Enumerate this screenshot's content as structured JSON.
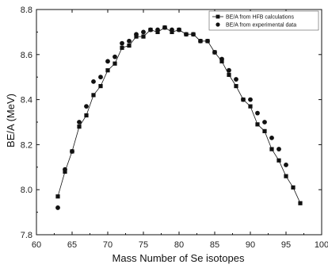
{
  "chart_data": {
    "type": "line",
    "title": "",
    "xlabel": "Mass Number of Se isotopes",
    "ylabel": "BE/A (MeV)",
    "xlim": [
      60,
      100
    ],
    "ylim": [
      7.8,
      8.8
    ],
    "xticks": [
      "60",
      "65",
      "70",
      "75",
      "80",
      "85",
      "90",
      "95",
      "100"
    ],
    "yticks": [
      "7.8",
      "8.0",
      "8.2",
      "8.4",
      "8.6",
      "8.8"
    ],
    "grid": false,
    "legend_position": "top-right",
    "series": [
      {
        "name": "BE/A from HFB calculations",
        "marker": "square",
        "line": true,
        "color": "#111111",
        "x": [
          63,
          64,
          65,
          66,
          67,
          68,
          69,
          70,
          71,
          72,
          73,
          74,
          75,
          76,
          77,
          78,
          79,
          80,
          81,
          82,
          83,
          84,
          85,
          86,
          87,
          88,
          89,
          90,
          91,
          92,
          93,
          94,
          95,
          96,
          97
        ],
        "y": [
          7.97,
          8.08,
          8.17,
          8.28,
          8.33,
          8.42,
          8.46,
          8.53,
          8.56,
          8.63,
          8.64,
          8.68,
          8.68,
          8.71,
          8.7,
          8.72,
          8.7,
          8.71,
          8.69,
          8.69,
          8.66,
          8.66,
          8.61,
          8.57,
          8.51,
          8.46,
          8.4,
          8.37,
          8.29,
          8.26,
          8.18,
          8.13,
          8.06,
          8.01,
          7.94
        ]
      },
      {
        "name": "BE/A from experimental data",
        "marker": "circle",
        "line": false,
        "color": "#111111",
        "x": [
          63,
          64,
          65,
          66,
          67,
          68,
          69,
          70,
          71,
          72,
          73,
          74,
          75,
          76,
          77,
          78,
          79,
          80,
          81,
          82,
          83,
          84,
          85,
          86,
          87,
          88,
          89,
          90,
          91,
          92,
          93,
          94,
          95
        ],
        "y": [
          7.92,
          8.09,
          8.17,
          8.3,
          8.37,
          8.48,
          8.5,
          8.57,
          8.59,
          8.65,
          8.66,
          8.69,
          8.7,
          8.71,
          8.71,
          8.72,
          8.71,
          8.71,
          8.69,
          8.69,
          8.66,
          8.66,
          8.61,
          8.58,
          8.53,
          8.49,
          8.4,
          8.4,
          8.34,
          8.3,
          8.23,
          8.18,
          8.11
        ]
      }
    ]
  }
}
